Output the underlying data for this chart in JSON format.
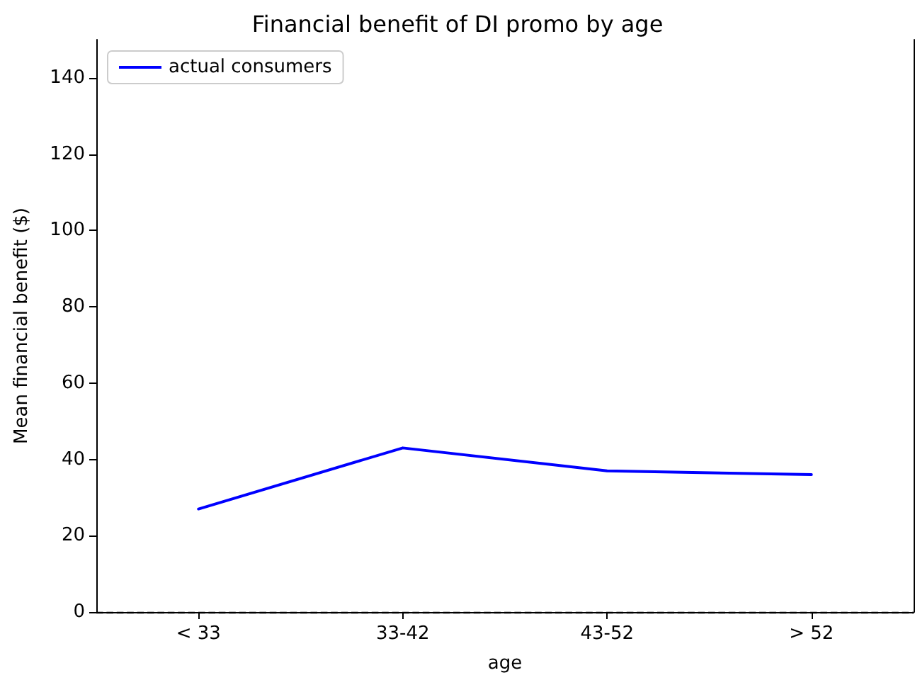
{
  "chart_data": {
    "type": "line",
    "title": "Financial benefit of DI promo by age",
    "xlabel": "age",
    "ylabel": "Mean financial benefit ($)",
    "categories": [
      "< 33",
      "33-42",
      "43-52",
      "> 52"
    ],
    "series": [
      {
        "name": "actual consumers",
        "color": "#0000ff",
        "values": [
          27,
          43,
          37,
          36
        ]
      }
    ],
    "ylim": [
      0,
      150
    ],
    "yticks": [
      0,
      20,
      40,
      60,
      80,
      100,
      120,
      140
    ],
    "ref_lines": [
      {
        "axis": "y",
        "value": 0,
        "color": "#000000",
        "line_style": "dashed"
      }
    ],
    "legend": "top left",
    "grid": false,
    "marker": "none",
    "line_style": "solid"
  }
}
